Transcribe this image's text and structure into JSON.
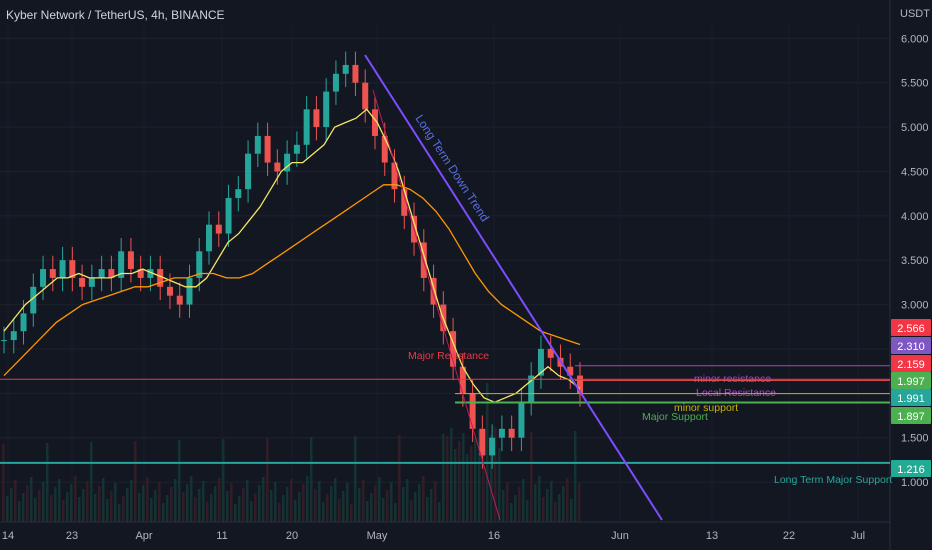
{
  "header": {
    "title": "Kyber Network / TetherUS, 4h, BINANCE",
    "unit": "USDT"
  },
  "chart_data": {
    "type": "candlestick",
    "title": "Kyber Network / TetherUS, 4h, BINANCE",
    "y_unit": "USDT",
    "ylim": [
      0.55,
      6.15
    ],
    "y_ticks": [
      "6.000",
      "5.500",
      "5.000",
      "4.500",
      "4.000",
      "3.500",
      "3.000",
      "2.500",
      "2.000",
      "1.500",
      "1.000"
    ],
    "x_ticks": [
      "14",
      "23",
      "Apr",
      "11",
      "20",
      "May",
      "16",
      "Jun",
      "13",
      "22",
      "Jul"
    ],
    "price_badges": [
      {
        "value": "2.566",
        "color": "#f23645"
      },
      {
        "value": "2.310",
        "color": "#7e57c2"
      },
      {
        "value": "2.159",
        "color": "#f23645"
      },
      {
        "value": "1.997",
        "color": "#4caf50"
      },
      {
        "value": "1.991",
        "color": "#26a69a"
      },
      {
        "value": "1.897",
        "color": "#4caf50"
      },
      {
        "value": "1.216",
        "color": "#22ab94"
      }
    ],
    "horizontal_levels": [
      {
        "label": "Major Resistance",
        "value": 2.159,
        "color": "#f23645"
      },
      {
        "label": "minor resistance",
        "value": 2.31,
        "color": "#ab47bc"
      },
      {
        "label": "Local Resistance",
        "value": 2.146,
        "color": "#ef5350"
      },
      {
        "label": "minor support",
        "value": 1.997,
        "color": "#c7b400"
      },
      {
        "label": "Major Support",
        "value": 1.897,
        "color": "#4caf50"
      },
      {
        "label": "Long Term Major Support",
        "value": 1.216,
        "color": "#26a69a"
      }
    ],
    "annotations": [
      {
        "text": "Long Term Down Trend",
        "color": "#5b6ee1"
      }
    ],
    "series": [
      {
        "values": [
          2.6,
          2.7,
          2.9,
          3.2,
          3.4,
          3.3,
          3.5,
          3.3,
          3.2,
          3.3,
          3.4,
          3.3,
          3.6,
          3.4,
          3.3,
          3.4,
          3.2,
          3.1,
          3.0,
          3.3,
          3.6,
          3.9,
          3.8,
          4.2,
          4.3,
          4.7,
          4.9,
          4.6,
          4.5,
          4.7,
          4.8,
          5.2,
          5.0,
          5.4,
          5.6,
          5.7,
          5.5,
          5.2,
          4.9,
          4.6,
          4.3,
          4.0,
          3.7,
          3.3,
          3.0,
          2.7,
          2.3,
          2.0,
          1.6,
          1.3,
          1.5,
          1.6,
          1.5,
          1.9,
          2.2,
          2.5,
          2.4,
          2.3,
          2.2,
          2.0
        ]
      },
      {
        "values": [
          2.7,
          2.85,
          3.0,
          3.1,
          3.2,
          3.3,
          3.3,
          3.35,
          3.3,
          3.3,
          3.3,
          3.35,
          3.35,
          3.4,
          3.35,
          3.3,
          3.25,
          3.2,
          3.2,
          3.3,
          3.5,
          3.7,
          3.8,
          3.95,
          4.1,
          4.3,
          4.5,
          4.6,
          4.6,
          4.7,
          4.8,
          5.0,
          5.05,
          5.1,
          5.2,
          5.05,
          4.8,
          4.5,
          4.1,
          3.7,
          3.3,
          2.9,
          2.6,
          2.3,
          2.1,
          1.95,
          1.9,
          1.95,
          2.0,
          2.1,
          2.2,
          2.3,
          2.2,
          2.15,
          2.05
        ]
      },
      {
        "values": [
          2.2,
          2.35,
          2.5,
          2.65,
          2.8,
          2.9,
          3.0,
          3.05,
          3.1,
          3.15,
          3.2,
          3.2,
          3.25,
          3.3,
          3.3,
          3.35,
          3.35,
          3.3,
          3.3,
          3.35,
          3.45,
          3.55,
          3.65,
          3.75,
          3.85,
          3.95,
          4.05,
          4.15,
          4.25,
          4.35,
          4.35,
          4.3,
          4.2,
          4.05,
          3.85,
          3.6,
          3.35,
          3.15,
          3.0,
          2.9,
          2.8,
          2.7,
          2.65,
          2.6,
          2.55
        ]
      }
    ]
  }
}
